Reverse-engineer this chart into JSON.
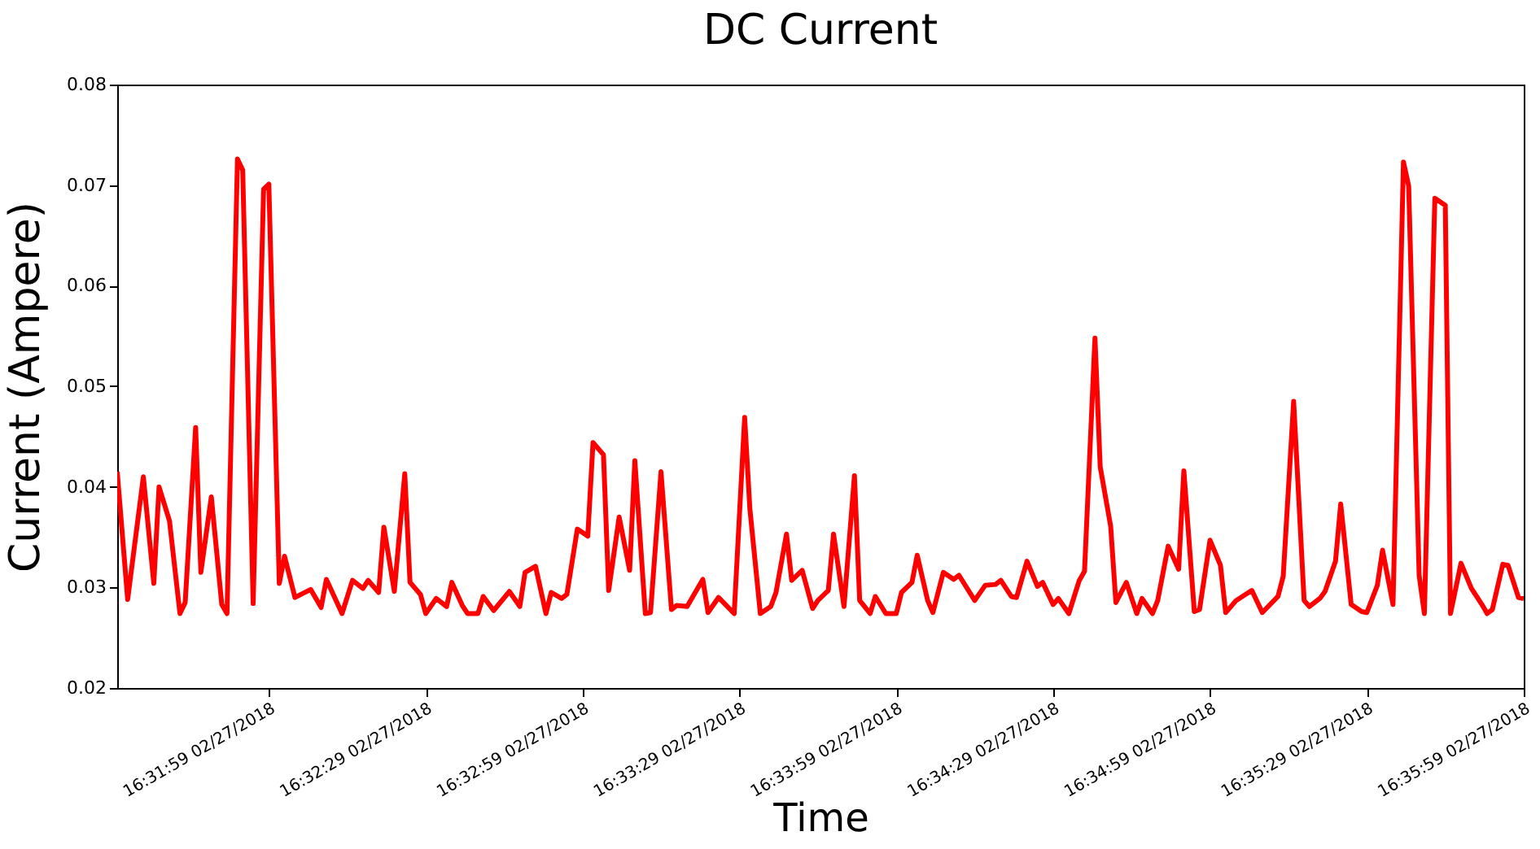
{
  "chart_data": {
    "type": "line",
    "title": "DC Current",
    "xlabel": "Time",
    "ylabel": "Current (Ampere)",
    "x": [
      "2018-02-27T16:31:30",
      "2018-02-27T16:31:32",
      "2018-02-27T16:31:35",
      "2018-02-27T16:31:37",
      "2018-02-27T16:31:38",
      "2018-02-27T16:31:40",
      "2018-02-27T16:31:42",
      "2018-02-27T16:31:43",
      "2018-02-27T16:31:45",
      "2018-02-27T16:31:46",
      "2018-02-27T16:31:48",
      "2018-02-27T16:31:50",
      "2018-02-27T16:31:51",
      "2018-02-27T16:31:53",
      "2018-02-27T16:31:54",
      "2018-02-27T16:31:56",
      "2018-02-27T16:31:58",
      "2018-02-27T16:31:59",
      "2018-02-27T16:32:01",
      "2018-02-27T16:32:02",
      "2018-02-27T16:32:04",
      "2018-02-27T16:32:07",
      "2018-02-27T16:32:09",
      "2018-02-27T16:32:10",
      "2018-02-27T16:32:13",
      "2018-02-27T16:32:15",
      "2018-02-27T16:32:17",
      "2018-02-27T16:32:18",
      "2018-02-27T16:32:20",
      "2018-02-27T16:32:21",
      "2018-02-27T16:32:23",
      "2018-02-27T16:32:25",
      "2018-02-27T16:32:26",
      "2018-02-27T16:32:28",
      "2018-02-27T16:32:29",
      "2018-02-27T16:32:31",
      "2018-02-27T16:32:33",
      "2018-02-27T16:32:34",
      "2018-02-27T16:32:36",
      "2018-02-27T16:32:37",
      "2018-02-27T16:32:39",
      "2018-02-27T16:32:40",
      "2018-02-27T16:32:42",
      "2018-02-27T16:32:45",
      "2018-02-27T16:32:47",
      "2018-02-27T16:32:48",
      "2018-02-27T16:32:50",
      "2018-02-27T16:32:52",
      "2018-02-27T16:32:53",
      "2018-02-27T16:32:55",
      "2018-02-27T16:32:56",
      "2018-02-27T16:32:58",
      "2018-02-27T16:33:00",
      "2018-02-27T16:33:01",
      "2018-02-27T16:33:03",
      "2018-02-27T16:33:04",
      "2018-02-27T16:33:06",
      "2018-02-27T16:33:08",
      "2018-02-27T16:33:09",
      "2018-02-27T16:33:11",
      "2018-02-27T16:33:12",
      "2018-02-27T16:33:14",
      "2018-02-27T16:33:16",
      "2018-02-27T16:33:17",
      "2018-02-27T16:33:19",
      "2018-02-27T16:33:22",
      "2018-02-27T16:33:23",
      "2018-02-27T16:33:25",
      "2018-02-27T16:33:28",
      "2018-02-27T16:33:30",
      "2018-02-27T16:33:31",
      "2018-02-27T16:33:33",
      "2018-02-27T16:33:35",
      "2018-02-27T16:33:36",
      "2018-02-27T16:33:38",
      "2018-02-27T16:33:39",
      "2018-02-27T16:33:41",
      "2018-02-27T16:33:43",
      "2018-02-27T16:33:44",
      "2018-02-27T16:33:46",
      "2018-02-27T16:33:47",
      "2018-02-27T16:33:49",
      "2018-02-27T16:33:51",
      "2018-02-27T16:33:52",
      "2018-02-27T16:33:54",
      "2018-02-27T16:33:55",
      "2018-02-27T16:33:57",
      "2018-02-27T16:33:59",
      "2018-02-27T16:34:00",
      "2018-02-27T16:34:02",
      "2018-02-27T16:34:03",
      "2018-02-27T16:34:05",
      "2018-02-27T16:34:06",
      "2018-02-27T16:34:08",
      "2018-02-27T16:34:10",
      "2018-02-27T16:34:11",
      "2018-02-27T16:34:14",
      "2018-02-27T16:34:16",
      "2018-02-27T16:34:18",
      "2018-02-27T16:34:19",
      "2018-02-27T16:34:21",
      "2018-02-27T16:34:22",
      "2018-02-27T16:34:24",
      "2018-02-27T16:34:26",
      "2018-02-27T16:34:27",
      "2018-02-27T16:34:29",
      "2018-02-27T16:34:30",
      "2018-02-27T16:34:32",
      "2018-02-27T16:34:34",
      "2018-02-27T16:34:35",
      "2018-02-27T16:34:37",
      "2018-02-27T16:34:38",
      "2018-02-27T16:34:40",
      "2018-02-27T16:34:41",
      "2018-02-27T16:34:43",
      "2018-02-27T16:34:45",
      "2018-02-27T16:34:46",
      "2018-02-27T16:34:48",
      "2018-02-27T16:34:49",
      "2018-02-27T16:34:51",
      "2018-02-27T16:34:53",
      "2018-02-27T16:34:54",
      "2018-02-27T16:34:56",
      "2018-02-27T16:34:57",
      "2018-02-27T16:34:59",
      "2018-02-27T16:35:01",
      "2018-02-27T16:35:02",
      "2018-02-27T16:35:04",
      "2018-02-27T16:35:07",
      "2018-02-27T16:35:09",
      "2018-02-27T16:35:12",
      "2018-02-27T16:35:13",
      "2018-02-27T16:35:15",
      "2018-02-27T16:35:17",
      "2018-02-27T16:35:18",
      "2018-02-27T16:35:20",
      "2018-02-27T16:35:21",
      "2018-02-27T16:35:23",
      "2018-02-27T16:35:24",
      "2018-02-27T16:35:26",
      "2018-02-27T16:35:28",
      "2018-02-27T16:35:29",
      "2018-02-27T16:35:31",
      "2018-02-27T16:35:32",
      "2018-02-27T16:35:34",
      "2018-02-27T16:35:36",
      "2018-02-27T16:35:37",
      "2018-02-27T16:35:39",
      "2018-02-27T16:35:40",
      "2018-02-27T16:35:42",
      "2018-02-27T16:35:44",
      "2018-02-27T16:35:45",
      "2018-02-27T16:35:47",
      "2018-02-27T16:35:49",
      "2018-02-27T16:35:51",
      "2018-02-27T16:35:52",
      "2018-02-27T16:35:53",
      "2018-02-27T16:35:55",
      "2018-02-27T16:35:56",
      "2018-02-27T16:35:58",
      "2018-02-27T16:35:59"
    ],
    "series": [
      {
        "color": "#ff0000",
        "values": [
          0.0415,
          0.0288,
          0.041,
          0.0304,
          0.04,
          0.0366,
          0.0274,
          0.0285,
          0.0459,
          0.0315,
          0.039,
          0.0283,
          0.0274,
          0.0726,
          0.0715,
          0.0284,
          0.0696,
          0.0701,
          0.0304,
          0.0331,
          0.029,
          0.0298,
          0.028,
          0.0308,
          0.0274,
          0.0307,
          0.0299,
          0.0307,
          0.0295,
          0.036,
          0.0296,
          0.0413,
          0.0305,
          0.0293,
          0.0274,
          0.0289,
          0.0281,
          0.0305,
          0.0282,
          0.0274,
          0.0274,
          0.0291,
          0.0277,
          0.0296,
          0.0281,
          0.0315,
          0.0321,
          0.0274,
          0.0295,
          0.0289,
          0.0293,
          0.0358,
          0.0351,
          0.0444,
          0.0432,
          0.0297,
          0.037,
          0.0317,
          0.0426,
          0.0274,
          0.0275,
          0.0415,
          0.0278,
          0.0282,
          0.0281,
          0.0308,
          0.0275,
          0.029,
          0.0274,
          0.0469,
          0.0378,
          0.0274,
          0.0281,
          0.0295,
          0.0353,
          0.0307,
          0.0317,
          0.0279,
          0.0287,
          0.0297,
          0.0353,
          0.0281,
          0.0411,
          0.0287,
          0.0274,
          0.0291,
          0.0274,
          0.0274,
          0.0295,
          0.0305,
          0.0332,
          0.0287,
          0.0275,
          0.0315,
          0.0308,
          0.0312,
          0.0287,
          0.0302,
          0.0303,
          0.0307,
          0.0291,
          0.029,
          0.0326,
          0.0301,
          0.0305,
          0.0283,
          0.0289,
          0.0274,
          0.0307,
          0.0316,
          0.0548,
          0.042,
          0.0361,
          0.0285,
          0.0305,
          0.0274,
          0.0289,
          0.0274,
          0.0287,
          0.0341,
          0.0318,
          0.0416,
          0.0276,
          0.0278,
          0.0347,
          0.0322,
          0.0275,
          0.0287,
          0.0297,
          0.0275,
          0.0291,
          0.0311,
          0.0485,
          0.0287,
          0.0281,
          0.0289,
          0.0296,
          0.0326,
          0.0383,
          0.0283,
          0.0276,
          0.0275,
          0.0302,
          0.0337,
          0.0283,
          0.0723,
          0.0699,
          0.0312,
          0.0274,
          0.0687,
          0.068,
          0.0274,
          0.0324,
          0.0299,
          0.0283,
          0.0274,
          0.0278,
          0.0323,
          0.0322,
          0.029,
          0.0289
        ]
      }
    ],
    "xlim": [
      "2018-02-27T16:31:30",
      "2018-02-27T16:35:59"
    ],
    "xticks": [
      {
        "value": "2018-02-27T16:31:59",
        "label": "16:31:59 02/27/2018"
      },
      {
        "value": "2018-02-27T16:32:29",
        "label": "16:32:29 02/27/2018"
      },
      {
        "value": "2018-02-27T16:32:59",
        "label": "16:32:59 02/27/2018"
      },
      {
        "value": "2018-02-27T16:33:29",
        "label": "16:33:29 02/27/2018"
      },
      {
        "value": "2018-02-27T16:33:59",
        "label": "16:33:59 02/27/2018"
      },
      {
        "value": "2018-02-27T16:34:29",
        "label": "16:34:29 02/27/2018"
      },
      {
        "value": "2018-02-27T16:34:59",
        "label": "16:34:59 02/27/2018"
      },
      {
        "value": "2018-02-27T16:35:29",
        "label": "16:35:29 02/27/2018"
      },
      {
        "value": "2018-02-27T16:35:59",
        "label": "16:35:59 02/27/2018"
      }
    ],
    "ylim": [
      0.02,
      0.08
    ],
    "yticks": [
      0.02,
      0.03,
      0.04,
      0.05,
      0.06,
      0.07,
      0.08
    ]
  }
}
